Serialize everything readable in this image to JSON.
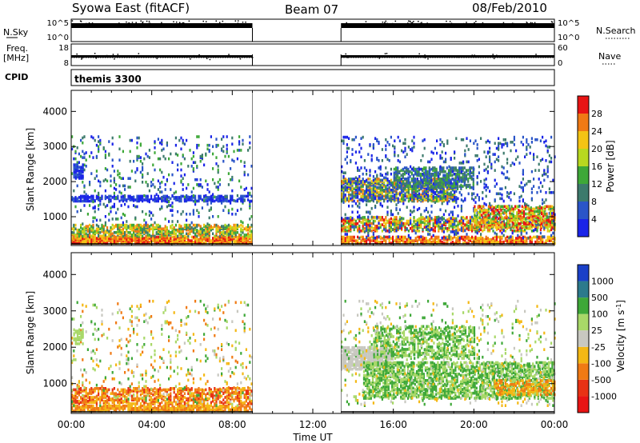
{
  "header": {
    "radar": "Syowa East (fitACF)",
    "beam": "Beam 07",
    "date": "08/Feb/2010"
  },
  "labels": {
    "nsky": "N.Sky",
    "nsearch": "N.Search",
    "freq_line1": "Freq.",
    "freq_line2": "[MHz]",
    "nave": "Nave",
    "cpid": "CPID",
    "cpid_value": "themis 3300",
    "time_axis": "Time UT",
    "y_axis": "Slant Range [km]"
  },
  "chart_data": [
    {
      "type": "line",
      "name": "noise-panel",
      "left_ticks": [
        "10^5",
        "10^0"
      ],
      "right_ticks": [
        "10^5",
        "10^0"
      ],
      "data_intervals": [
        [
          0.0,
          9.0
        ],
        [
          13.4,
          24.0
        ]
      ]
    },
    {
      "type": "line",
      "name": "freq-nave-panel",
      "left_ticks": [
        "18",
        "8"
      ],
      "right_ticks": [
        "60",
        "0"
      ],
      "data_intervals": [
        [
          0.0,
          9.0
        ],
        [
          13.4,
          24.0
        ]
      ]
    },
    {
      "type": "heatmap",
      "name": "power-panel",
      "x_range_hours": [
        0,
        24
      ],
      "y_range_km": [
        180,
        4600
      ],
      "y_ticks": [
        1000,
        2000,
        3000,
        4000
      ],
      "x_tick_labels": [
        "00:00",
        "04:00",
        "08:00",
        "12:00",
        "16:00",
        "20:00",
        "00:00"
      ],
      "colorbar": {
        "label": "Power [dB]",
        "ticks": [
          "4",
          "8",
          "12",
          "16",
          "20",
          "24",
          "28"
        ],
        "colors": [
          "#1a24e8",
          "#2a55c8",
          "#3c7a6c",
          "#3ea838",
          "#b8d820",
          "#f4c414",
          "#f07a14",
          "#e81414"
        ]
      },
      "data_intervals": [
        [
          0.0,
          9.0
        ],
        [
          13.4,
          24.0
        ]
      ]
    },
    {
      "type": "heatmap",
      "name": "velocity-panel",
      "x_range_hours": [
        0,
        24
      ],
      "y_range_km": [
        180,
        4600
      ],
      "y_ticks": [
        1000,
        2000,
        3000,
        4000
      ],
      "colorbar": {
        "label": "Velocity [m s-1]",
        "ticks": [
          "1000",
          "500",
          "100",
          "25",
          "-25",
          "-100",
          "-500",
          "-1000"
        ],
        "colors": [
          "#1a40c8",
          "#2c7a8c",
          "#3ea838",
          "#a8d868",
          "#c8c8c0",
          "#f4b814",
          "#f07a14",
          "#e83214",
          "#e81414"
        ]
      },
      "data_intervals": [
        [
          0.0,
          9.0
        ],
        [
          13.4,
          24.0
        ]
      ]
    }
  ]
}
